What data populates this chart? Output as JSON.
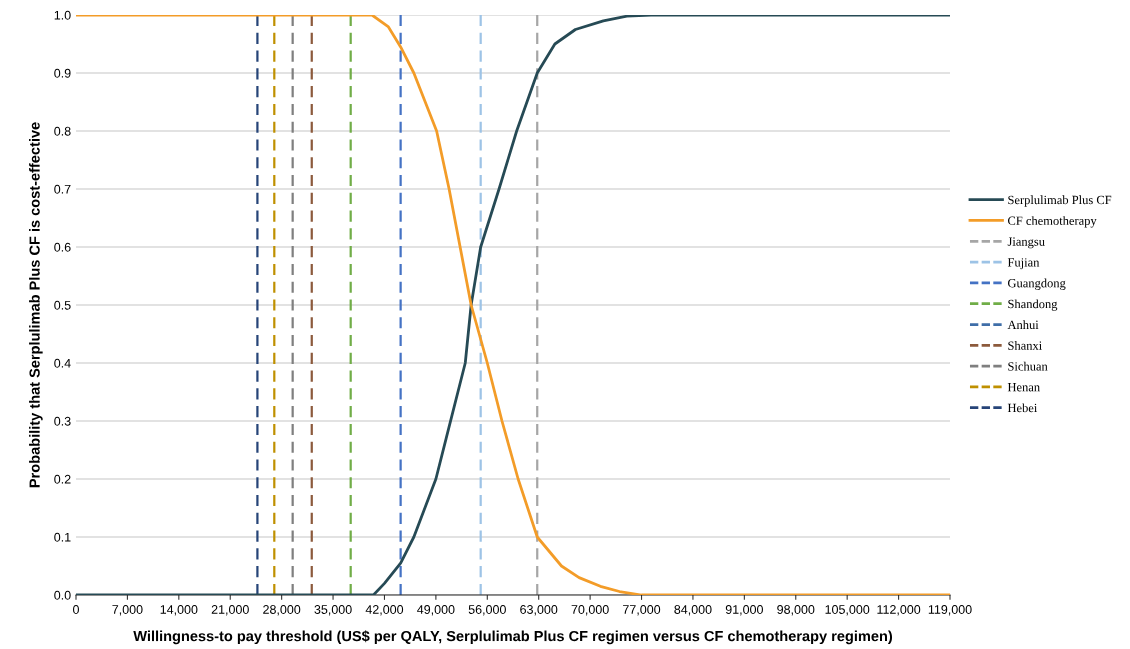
{
  "chart_data": {
    "type": "line",
    "xlabel": "Willingness-to pay threshold (US$ per QALY, Serplulimab Plus CF regimen versus CF chemotherapy regimen)",
    "ylabel": "Probability that Serplulimab Plus CF is cost-effective",
    "series": [
      {
        "name": "Serplulimab Plus CF",
        "color": "#264a55",
        "x": [
          0,
          40500,
          42000,
          44200,
          46000,
          49000,
          50400,
          53000,
          53800,
          55100,
          57600,
          60000,
          62800,
          65200,
          68000,
          71800,
          75000,
          78300,
          119000
        ],
        "values": [
          0,
          0,
          0.02,
          0.055,
          0.1,
          0.2,
          0.27,
          0.4,
          0.5,
          0.6,
          0.7,
          0.8,
          0.9,
          0.95,
          0.975,
          0.99,
          0.998,
          1,
          1
        ]
      },
      {
        "name": "CF chemotherapy",
        "color": "#f39c28",
        "x": [
          0,
          40300,
          42500,
          44200,
          46000,
          49100,
          50800,
          52300,
          53800,
          56000,
          58000,
          60200,
          62800,
          66100,
          68500,
          71400,
          74000,
          77000,
          119000
        ],
        "values": [
          1,
          1,
          0.98,
          0.945,
          0.9,
          0.8,
          0.7,
          0.6,
          0.5,
          0.4,
          0.3,
          0.2,
          0.1,
          0.05,
          0.03,
          0.015,
          0.006,
          0,
          0
        ]
      },
      {
        "name": "Jiangsu",
        "color": "#a6a6a6",
        "line_style": "dashed",
        "x": [
          62800,
          62800
        ],
        "values": [
          0,
          1
        ]
      },
      {
        "name": "Fujian",
        "color": "#9dc3e6",
        "line_style": "dashed",
        "x": [
          55100,
          55100
        ],
        "values": [
          0,
          1
        ]
      },
      {
        "name": "Guangdong",
        "color": "#4472c4",
        "line_style": "dashed",
        "x": [
          44200,
          44200
        ],
        "values": [
          0,
          1
        ]
      },
      {
        "name": "Shandong",
        "color": "#70ad47",
        "line_style": "dashed",
        "x": [
          37400,
          37400
        ],
        "values": [
          0,
          1
        ]
      },
      {
        "name": "Anhui",
        "color": "#3f6ea8",
        "line_style": "dashed",
        "x": [
          null,
          null
        ],
        "values": [
          null,
          null
        ]
      },
      {
        "name": "Shanxi",
        "color": "#8c5a3c",
        "line_style": "dashed",
        "x": [
          32100,
          32100
        ],
        "values": [
          0,
          1
        ]
      },
      {
        "name": "Sichuan",
        "color": "#7f7f7f",
        "line_style": "dashed",
        "x": [
          29500,
          29500
        ],
        "values": [
          0,
          1
        ]
      },
      {
        "name": "Henan",
        "color": "#bf9000",
        "line_style": "dashed",
        "x": [
          27000,
          27000
        ],
        "values": [
          0,
          1
        ]
      },
      {
        "name": "Hebei",
        "color": "#264478",
        "line_style": "dashed",
        "x": [
          24700,
          24700
        ],
        "values": [
          0,
          1
        ]
      }
    ],
    "xlim": [
      0,
      119000
    ],
    "xticks": [
      {
        "value": 0,
        "label": "0"
      },
      {
        "value": 7000,
        "label": "7,000"
      },
      {
        "value": 14000,
        "label": "14,000"
      },
      {
        "value": 21000,
        "label": "21,000"
      },
      {
        "value": 28000,
        "label": "28,000"
      },
      {
        "value": 35000,
        "label": "35,000"
      },
      {
        "value": 42000,
        "label": "42,000"
      },
      {
        "value": 49000,
        "label": "49,000"
      },
      {
        "value": 56000,
        "label": "56,000"
      },
      {
        "value": 63000,
        "label": "63,000"
      },
      {
        "value": 70000,
        "label": "70,000"
      },
      {
        "value": 77000,
        "label": "77,000"
      },
      {
        "value": 84000,
        "label": "84,000"
      },
      {
        "value": 91000,
        "label": "91,000"
      },
      {
        "value": 98000,
        "label": "98,000"
      },
      {
        "value": 105000,
        "label": "105,000"
      },
      {
        "value": 112000,
        "label": "112,000"
      },
      {
        "value": 119000,
        "label": "119,000"
      }
    ],
    "ylim": [
      0,
      1
    ],
    "yticks": [
      {
        "value": 0,
        "label": "0.0"
      },
      {
        "value": 0.1,
        "label": "0.1"
      },
      {
        "value": 0.2,
        "label": "0.2"
      },
      {
        "value": 0.3,
        "label": "0.3"
      },
      {
        "value": 0.4,
        "label": "0.4"
      },
      {
        "value": 0.5,
        "label": "0.5"
      },
      {
        "value": 0.6,
        "label": "0.6"
      },
      {
        "value": 0.7,
        "label": "0.7"
      },
      {
        "value": 0.8,
        "label": "0.8"
      },
      {
        "value": 0.9,
        "label": "0.9"
      },
      {
        "value": 1,
        "label": "1.0"
      }
    ],
    "grid": "y",
    "legend": "right",
    "marker": "none",
    "line_style": "solid"
  }
}
